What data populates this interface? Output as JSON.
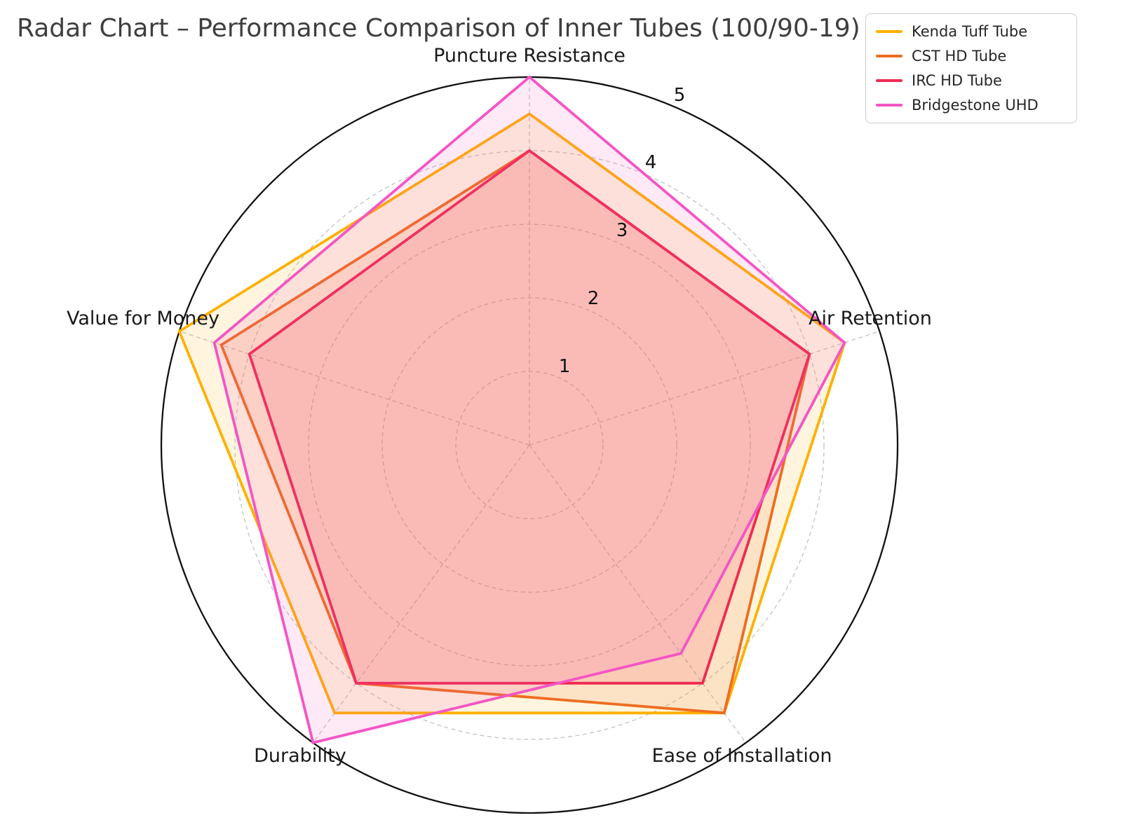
{
  "title": "Radar Chart – Performance Comparison of Inner Tubes (100/90-19)",
  "chart_data": {
    "type": "radar",
    "categories": [
      "Puncture Resistance",
      "Air Retention",
      "Ease of Installation",
      "Durability",
      "Value for Money"
    ],
    "tick_labels": [
      "1",
      "2",
      "3",
      "4",
      "5"
    ],
    "r_min": 0,
    "r_max": 5,
    "grid": "dashed gray circles at 1,2,3,4 with dashed spokes; solid black outer circle at 5",
    "legend_position": "top-right",
    "series": [
      {
        "name": "Kenda Tuff Tube",
        "color": "#ffb000",
        "values": [
          4.5,
          4.5,
          4.5,
          4.5,
          5.0
        ]
      },
      {
        "name": "CST HD Tube",
        "color": "#ee6d20",
        "values": [
          4.0,
          4.0,
          4.5,
          4.0,
          4.4
        ]
      },
      {
        "name": "IRC HD Tube",
        "color": "#ee2b52",
        "values": [
          4.0,
          4.0,
          4.0,
          4.0,
          4.0
        ]
      },
      {
        "name": "Bridgestone UHD",
        "color": "#f455c5",
        "values": [
          5.0,
          4.5,
          3.5,
          5.0,
          4.5
        ]
      }
    ]
  }
}
